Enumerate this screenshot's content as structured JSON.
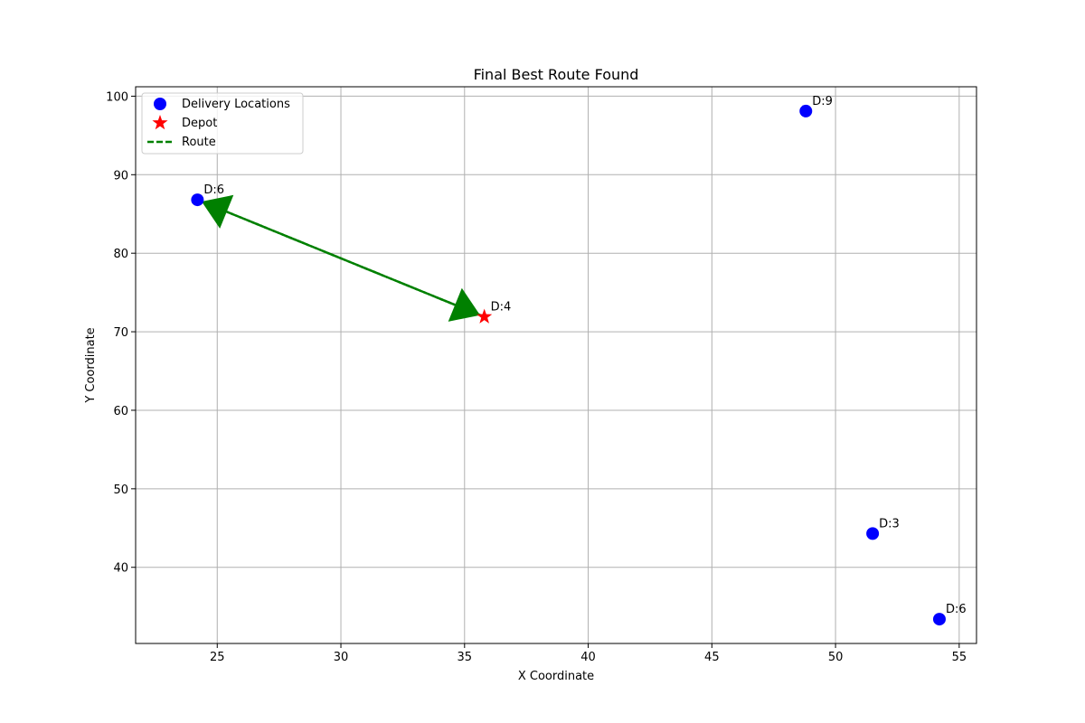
{
  "chart_data": {
    "type": "scatter",
    "title": "Final Best Route Found",
    "xlabel": "X Coordinate",
    "ylabel": "Y Coordinate",
    "xlim": [
      21.7,
      55.7
    ],
    "ylim": [
      30.3,
      101.2
    ],
    "xticks": [
      25,
      30,
      35,
      40,
      45,
      50,
      55
    ],
    "yticks": [
      40,
      50,
      60,
      70,
      80,
      90,
      100
    ],
    "grid": true,
    "legend": {
      "placement": "top-left",
      "entries": [
        {
          "label": "Delivery Locations",
          "marker": "circle",
          "color": "#0000ff"
        },
        {
          "label": "Depot",
          "marker": "star",
          "color": "#ff0000"
        },
        {
          "label": "Route",
          "marker": "dashed-line",
          "color": "#008000"
        }
      ]
    },
    "delivery_locations": [
      {
        "x": 24.2,
        "y": 86.8,
        "label": "D:6"
      },
      {
        "x": 48.8,
        "y": 98.1,
        "label": "D:9"
      },
      {
        "x": 51.5,
        "y": 44.3,
        "label": "D:3"
      },
      {
        "x": 54.2,
        "y": 33.4,
        "label": "D:6"
      }
    ],
    "depot": {
      "x": 35.8,
      "y": 71.9,
      "label": "D:4"
    },
    "route": [
      {
        "x": 35.8,
        "y": 71.9
      },
      {
        "x": 24.2,
        "y": 86.8
      },
      {
        "x": 35.8,
        "y": 71.9
      }
    ],
    "colors": {
      "route": "#008000",
      "delivery": "#0000ff",
      "depot": "#ff0000",
      "grid": "#b0b0b0"
    }
  }
}
